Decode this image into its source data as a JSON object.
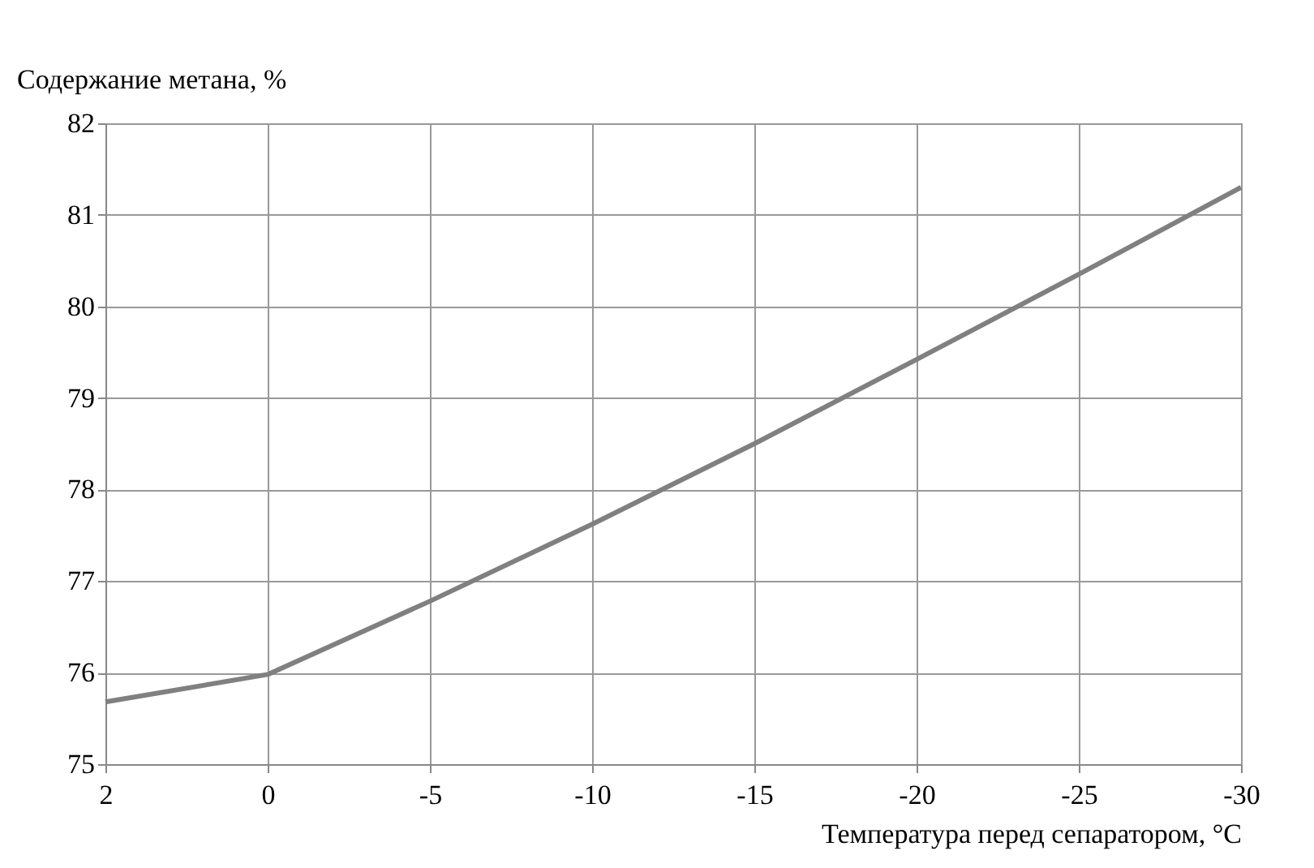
{
  "chart_data": {
    "type": "line",
    "xlabel": "Температура перед сепаратором, °C",
    "ylabel": "Содержание метана, %",
    "categories": [
      "2",
      "0",
      "-5",
      "-10",
      "-15",
      "-20",
      "-25",
      "-30"
    ],
    "series": [
      {
        "color": "#808080",
        "values": [
          75.68,
          75.98,
          76.78,
          77.62,
          78.5,
          79.42,
          80.35,
          81.3
        ]
      }
    ],
    "ylim": [
      75,
      82
    ],
    "yticks": [
      75,
      76,
      77,
      78,
      79,
      80,
      81,
      82
    ],
    "grid": true,
    "marker": "none",
    "line_style": "solid"
  }
}
